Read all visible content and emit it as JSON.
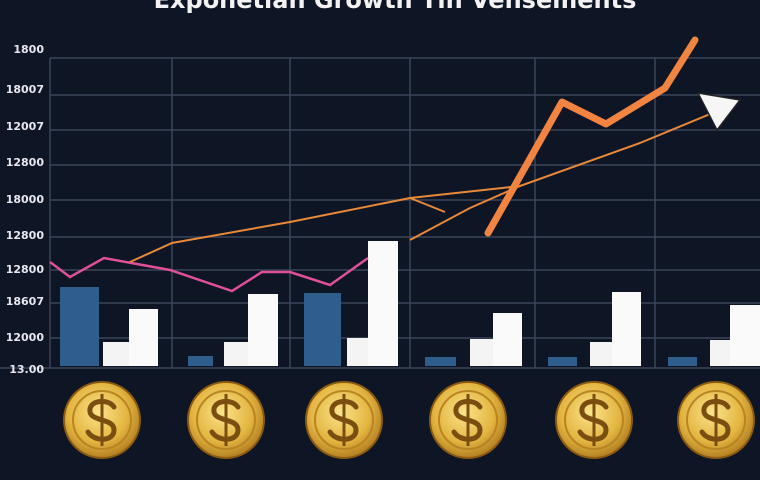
{
  "title": "Exponetian Growth Tin Vensements",
  "y_axis_labels": [
    "1800",
    "18007",
    "12007",
    "12800",
    "18000",
    "12800",
    "12800",
    "18607",
    "12000",
    "13.00"
  ]
}
